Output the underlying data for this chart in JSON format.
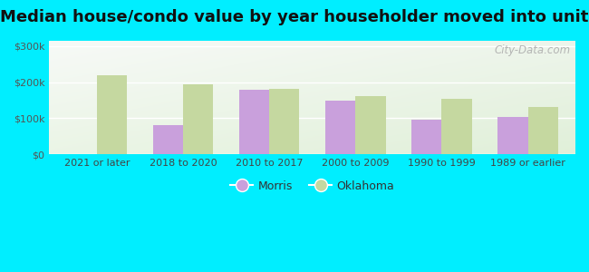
{
  "title": "Median house/condo value by year householder moved into unit",
  "categories": [
    "2021 or later",
    "2018 to 2020",
    "2010 to 2017",
    "2000 to 2009",
    "1990 to 1999",
    "1989 or earlier"
  ],
  "morris": [
    null,
    80000,
    180000,
    148000,
    97000,
    103000
  ],
  "oklahoma": [
    220000,
    195000,
    182000,
    162000,
    155000,
    132000
  ],
  "morris_color": "#c9a0dc",
  "oklahoma_color": "#c5d8a0",
  "bg_outer": "#00eeff",
  "yticks": [
    0,
    100000,
    200000,
    300000
  ],
  "ylabels": [
    "$0",
    "$100k",
    "$200k",
    "$300k"
  ],
  "ylim": [
    0,
    315000
  ],
  "bar_width": 0.35,
  "watermark": "City-Data.com",
  "title_fontsize": 13,
  "tick_fontsize": 8,
  "legend_fontsize": 9
}
